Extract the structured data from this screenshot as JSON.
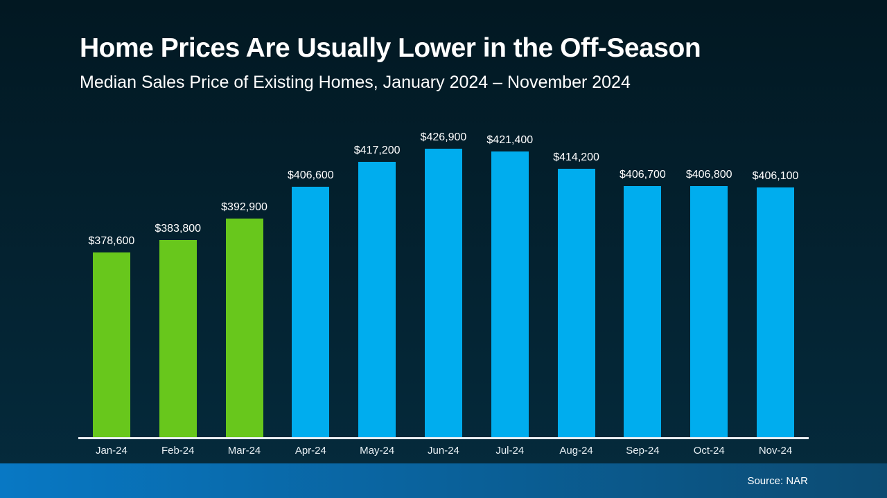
{
  "slide": {
    "title": "Home Prices Are Usually Lower in the Off-Season",
    "subtitle": "Median Sales Price of Existing Homes, January 2024 – November 2024",
    "source": "Source: NAR"
  },
  "colors": {
    "off_season_green": "#68c71c",
    "peak_season_blue": "#00adee",
    "background_top": "#021822",
    "background_bottom": "#052b3d",
    "footer_left": "#0878c4",
    "footer_right": "#0c4b72",
    "axis": "#e9eef2",
    "text": "#ffffff"
  },
  "chart_data": {
    "type": "bar",
    "title": "Home Prices Are Usually Lower in the Off-Season",
    "subtitle": "Median Sales Price of Existing Homes, January 2024 – November 2024",
    "categories": [
      "Jan-24",
      "Feb-24",
      "Mar-24",
      "Apr-24",
      "May-24",
      "Jun-24",
      "Jul-24",
      "Aug-24",
      "Sep-24",
      "Oct-24",
      "Nov-24"
    ],
    "values": [
      378600,
      383800,
      392900,
      406600,
      417200,
      426900,
      421400,
      414200,
      406700,
      406800,
      406100
    ],
    "value_labels": [
      "$378,600",
      "$383,800",
      "$392,900",
      "$406,600",
      "$417,200",
      "$426,900",
      "$421,400",
      "$414,200",
      "$406,700",
      "$406,800",
      "$406,100"
    ],
    "bar_colors": [
      "off_season_green",
      "off_season_green",
      "off_season_green",
      "peak_season_blue",
      "peak_season_blue",
      "peak_season_blue",
      "peak_season_blue",
      "peak_season_blue",
      "peak_season_blue",
      "peak_season_blue",
      "peak_season_blue"
    ],
    "xlabel": "",
    "ylabel": "",
    "ylim": [
      300000,
      430000
    ],
    "grid": false,
    "legend": null,
    "annotations": [
      "Source: NAR"
    ]
  }
}
